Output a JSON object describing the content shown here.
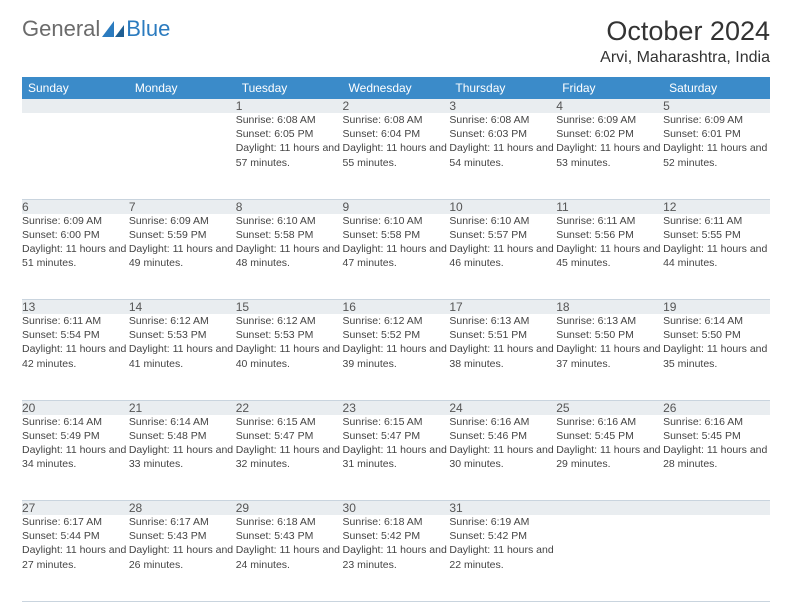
{
  "brand": {
    "part1": "General",
    "part2": "Blue"
  },
  "title": "October 2024",
  "location": "Arvi, Maharashtra, India",
  "colors": {
    "header_bg": "#3b8bc9",
    "daynum_bg": "#e9edf0",
    "border": "#c9d4de",
    "text": "#444444",
    "brand_gray": "#6b6b6b",
    "brand_blue": "#2b7bbf"
  },
  "weekdays": [
    "Sunday",
    "Monday",
    "Tuesday",
    "Wednesday",
    "Thursday",
    "Friday",
    "Saturday"
  ],
  "weeks": [
    [
      null,
      null,
      {
        "n": "1",
        "sr": "6:08 AM",
        "ss": "6:05 PM",
        "dl": "11 hours and 57 minutes."
      },
      {
        "n": "2",
        "sr": "6:08 AM",
        "ss": "6:04 PM",
        "dl": "11 hours and 55 minutes."
      },
      {
        "n": "3",
        "sr": "6:08 AM",
        "ss": "6:03 PM",
        "dl": "11 hours and 54 minutes."
      },
      {
        "n": "4",
        "sr": "6:09 AM",
        "ss": "6:02 PM",
        "dl": "11 hours and 53 minutes."
      },
      {
        "n": "5",
        "sr": "6:09 AM",
        "ss": "6:01 PM",
        "dl": "11 hours and 52 minutes."
      }
    ],
    [
      {
        "n": "6",
        "sr": "6:09 AM",
        "ss": "6:00 PM",
        "dl": "11 hours and 51 minutes."
      },
      {
        "n": "7",
        "sr": "6:09 AM",
        "ss": "5:59 PM",
        "dl": "11 hours and 49 minutes."
      },
      {
        "n": "8",
        "sr": "6:10 AM",
        "ss": "5:58 PM",
        "dl": "11 hours and 48 minutes."
      },
      {
        "n": "9",
        "sr": "6:10 AM",
        "ss": "5:58 PM",
        "dl": "11 hours and 47 minutes."
      },
      {
        "n": "10",
        "sr": "6:10 AM",
        "ss": "5:57 PM",
        "dl": "11 hours and 46 minutes."
      },
      {
        "n": "11",
        "sr": "6:11 AM",
        "ss": "5:56 PM",
        "dl": "11 hours and 45 minutes."
      },
      {
        "n": "12",
        "sr": "6:11 AM",
        "ss": "5:55 PM",
        "dl": "11 hours and 44 minutes."
      }
    ],
    [
      {
        "n": "13",
        "sr": "6:11 AM",
        "ss": "5:54 PM",
        "dl": "11 hours and 42 minutes."
      },
      {
        "n": "14",
        "sr": "6:12 AM",
        "ss": "5:53 PM",
        "dl": "11 hours and 41 minutes."
      },
      {
        "n": "15",
        "sr": "6:12 AM",
        "ss": "5:53 PM",
        "dl": "11 hours and 40 minutes."
      },
      {
        "n": "16",
        "sr": "6:12 AM",
        "ss": "5:52 PM",
        "dl": "11 hours and 39 minutes."
      },
      {
        "n": "17",
        "sr": "6:13 AM",
        "ss": "5:51 PM",
        "dl": "11 hours and 38 minutes."
      },
      {
        "n": "18",
        "sr": "6:13 AM",
        "ss": "5:50 PM",
        "dl": "11 hours and 37 minutes."
      },
      {
        "n": "19",
        "sr": "6:14 AM",
        "ss": "5:50 PM",
        "dl": "11 hours and 35 minutes."
      }
    ],
    [
      {
        "n": "20",
        "sr": "6:14 AM",
        "ss": "5:49 PM",
        "dl": "11 hours and 34 minutes."
      },
      {
        "n": "21",
        "sr": "6:14 AM",
        "ss": "5:48 PM",
        "dl": "11 hours and 33 minutes."
      },
      {
        "n": "22",
        "sr": "6:15 AM",
        "ss": "5:47 PM",
        "dl": "11 hours and 32 minutes."
      },
      {
        "n": "23",
        "sr": "6:15 AM",
        "ss": "5:47 PM",
        "dl": "11 hours and 31 minutes."
      },
      {
        "n": "24",
        "sr": "6:16 AM",
        "ss": "5:46 PM",
        "dl": "11 hours and 30 minutes."
      },
      {
        "n": "25",
        "sr": "6:16 AM",
        "ss": "5:45 PM",
        "dl": "11 hours and 29 minutes."
      },
      {
        "n": "26",
        "sr": "6:16 AM",
        "ss": "5:45 PM",
        "dl": "11 hours and 28 minutes."
      }
    ],
    [
      {
        "n": "27",
        "sr": "6:17 AM",
        "ss": "5:44 PM",
        "dl": "11 hours and 27 minutes."
      },
      {
        "n": "28",
        "sr": "6:17 AM",
        "ss": "5:43 PM",
        "dl": "11 hours and 26 minutes."
      },
      {
        "n": "29",
        "sr": "6:18 AM",
        "ss": "5:43 PM",
        "dl": "11 hours and 24 minutes."
      },
      {
        "n": "30",
        "sr": "6:18 AM",
        "ss": "5:42 PM",
        "dl": "11 hours and 23 minutes."
      },
      {
        "n": "31",
        "sr": "6:19 AM",
        "ss": "5:42 PM",
        "dl": "11 hours and 22 minutes."
      },
      null,
      null
    ]
  ],
  "labels": {
    "sunrise": "Sunrise:",
    "sunset": "Sunset:",
    "daylight": "Daylight:"
  }
}
